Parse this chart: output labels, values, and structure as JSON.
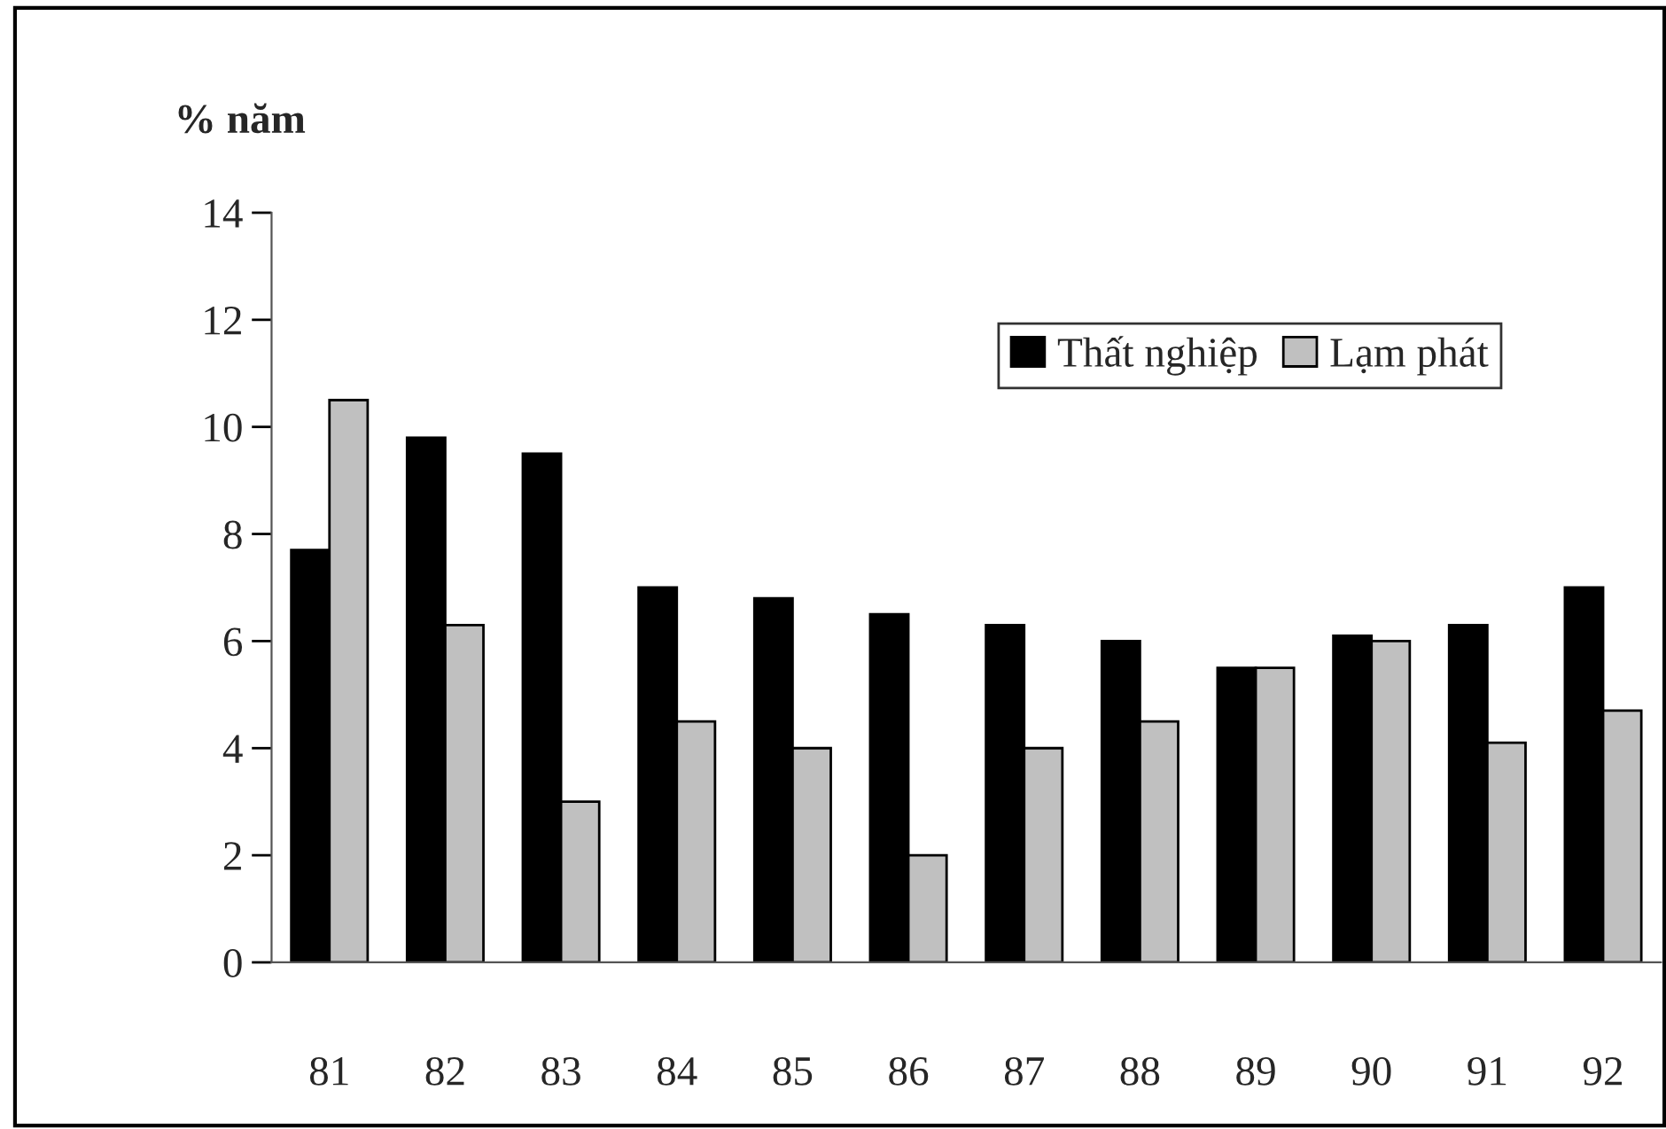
{
  "chart_data": {
    "type": "bar",
    "ylabel": "% năm",
    "categories": [
      "81",
      "82",
      "83",
      "84",
      "85",
      "86",
      "87",
      "88",
      "89",
      "90",
      "91",
      "92"
    ],
    "series": [
      {
        "name": "Thất nghiệp",
        "color": "#000000",
        "values": [
          7.7,
          9.8,
          9.5,
          7.0,
          6.8,
          6.5,
          6.3,
          6.0,
          5.5,
          6.1,
          6.3,
          7.0
        ]
      },
      {
        "name": "Lạm phát",
        "color": "#c0c0c0",
        "values": [
          10.5,
          6.3,
          3.0,
          4.5,
          4.0,
          2.0,
          4.0,
          4.5,
          5.5,
          6.0,
          4.1,
          4.7
        ]
      }
    ],
    "ylim": [
      0,
      14
    ],
    "yticks": [
      0,
      2,
      4,
      6,
      8,
      10,
      12,
      14
    ],
    "grid": false,
    "legend": "top right"
  }
}
